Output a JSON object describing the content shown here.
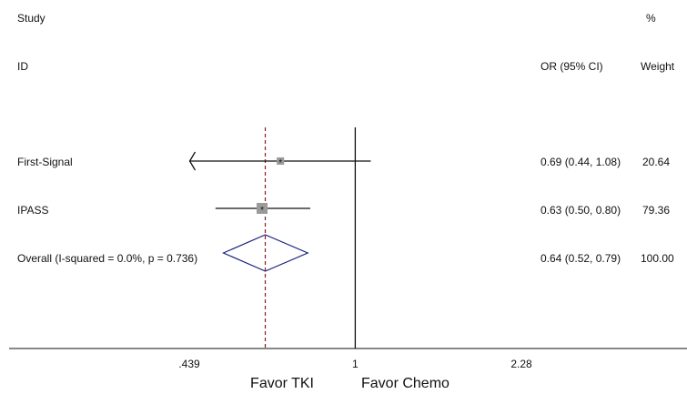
{
  "chart_data": {
    "type": "forest",
    "header": {
      "study_line1": "Study",
      "study_line2": "ID",
      "or_header": "OR (95% CI)",
      "weight_line1": "%",
      "weight_line2": "Weight"
    },
    "studies": [
      {
        "label": "First-Signal",
        "or": 0.69,
        "ci_low": 0.44,
        "ci_high": 1.08,
        "ci_text": "0.69 (0.44, 1.08)",
        "weight_text": "20.64",
        "weight": 20.64,
        "arrow_left": true
      },
      {
        "label": "IPASS",
        "or": 0.63,
        "ci_low": 0.5,
        "ci_high": 0.8,
        "ci_text": "0.63 (0.50, 0.80)",
        "weight_text": "79.36",
        "weight": 79.36,
        "arrow_left": false
      }
    ],
    "overall": {
      "label": "Overall  (I-squared = 0.0%, p = 0.736)",
      "or": 0.64,
      "ci_low": 0.52,
      "ci_high": 0.79,
      "ci_text": "0.64 (0.52, 0.79)",
      "weight_text": "100.00"
    },
    "x_axis": {
      "scale": "log",
      "range": [
        0.439,
        2.28
      ],
      "ticks": [
        0.439,
        1,
        2.28
      ],
      "tick_labels": [
        ".439",
        "1",
        "2.28"
      ],
      "null_line": 1
    },
    "left_label": "Favor TKI",
    "right_label": "Favor Chemo",
    "colors": {
      "line": "#111111",
      "box": "#9a9a9a",
      "diamond": "#1a237e",
      "overall_line": "#8b1a1a"
    }
  }
}
